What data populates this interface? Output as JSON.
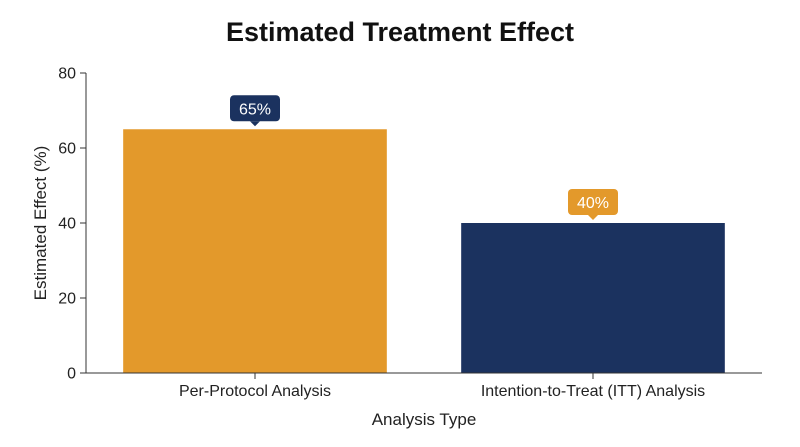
{
  "chart_data": {
    "type": "bar",
    "title": "Estimated Treatment Effect",
    "xlabel": "Analysis Type",
    "ylabel": "Estimated Effect (%)",
    "ylim": [
      0,
      80
    ],
    "yticks": [
      0,
      20,
      40,
      60,
      80
    ],
    "grid": false,
    "categories": [
      "Per-Protocol Analysis",
      "Intention-to-Treat (ITT) Analysis"
    ],
    "values": [
      65,
      40
    ],
    "data_labels": [
      "65%",
      "40%"
    ],
    "colors": {
      "bars": [
        "#E3992B",
        "#1B325F"
      ],
      "labels": [
        "#1B325F",
        "#E3992B"
      ],
      "axis": "#333333"
    }
  }
}
